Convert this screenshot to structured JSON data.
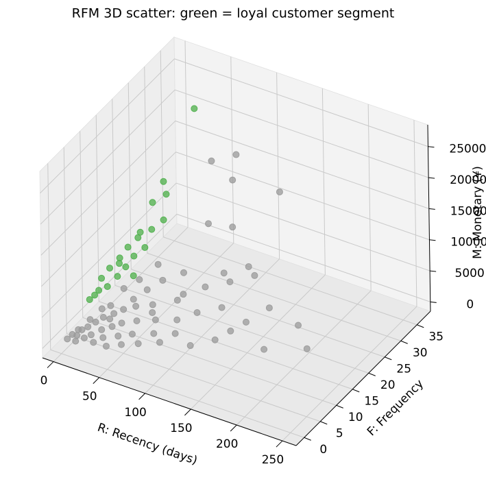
{
  "chart_data": {
    "type": "scatter3d",
    "title": "RFM 3D scatter: green = loyal customer segment",
    "xlabel": "R: Recency (days)",
    "ylabel": "F: Frequency",
    "zlabel": "M: Monetary (¥)",
    "xlim": [
      -12,
      265
    ],
    "ylim": [
      -2.5,
      39.2
    ],
    "zlim": [
      -1500,
      28500
    ],
    "xticks": [
      0,
      50,
      100,
      150,
      200,
      250
    ],
    "yticks": [
      0,
      5,
      10,
      15,
      20,
      25,
      30,
      35
    ],
    "zticks": [
      0,
      5000,
      10000,
      15000,
      20000,
      25000
    ],
    "grid": true,
    "series": [
      {
        "color": "#999999",
        "x": [
          5,
          8,
          12,
          15,
          18,
          20,
          22,
          25,
          28,
          30,
          33,
          35,
          38,
          40,
          42,
          45,
          48,
          50,
          55,
          58,
          60,
          65,
          70,
          75,
          80,
          85,
          90,
          95,
          100,
          110,
          120,
          130,
          140,
          150,
          160,
          175,
          190,
          210,
          230,
          3,
          10,
          14,
          26,
          32,
          44,
          52,
          62,
          68,
          78,
          88,
          105,
          115,
          125,
          135,
          145,
          12,
          20,
          30,
          40,
          50,
          60,
          80,
          90,
          120,
          100,
          70
        ],
        "y": [
          2,
          3,
          1,
          4,
          2,
          5,
          3,
          6,
          2,
          4,
          7,
          3,
          5,
          8,
          2,
          6,
          4,
          9,
          3,
          7,
          5,
          10,
          4,
          8,
          6,
          12,
          5,
          9,
          7,
          11,
          6,
          13,
          8,
          10,
          12,
          15,
          9,
          14,
          11,
          1,
          2,
          5,
          8,
          6,
          10,
          12,
          14,
          9,
          16,
          13,
          15,
          18,
          17,
          20,
          19,
          3,
          7,
          11,
          13,
          16,
          30,
          32,
          28,
          34,
          25,
          26
        ],
        "z": [
          800,
          1200,
          600,
          1500,
          900,
          2000,
          1100,
          2500,
          700,
          1800,
          3000,
          1300,
          2200,
          3500,
          800,
          2600,
          1700,
          4000,
          1200,
          3100,
          2100,
          4500,
          1600,
          3600,
          2700,
          5200,
          2300,
          4100,
          3200,
          5000,
          2800,
          5800,
          3700,
          4600,
          5500,
          7000,
          4200,
          6500,
          5300,
          500,
          900,
          2100,
          3400,
          2600,
          4300,
          5200,
          6200,
          3900,
          7200,
          5800,
          6800,
          8000,
          7600,
          9000,
          8600,
          1400,
          3100,
          4800,
          5700,
          7100,
          17000,
          18000,
          16500,
          13000,
          11000,
          9500
        ]
      },
      {
        "color": "#4daf4a",
        "x": [
          2,
          4,
          6,
          8,
          10,
          12,
          14,
          16,
          18,
          20,
          22,
          25,
          28,
          30,
          5,
          9,
          13,
          17,
          3,
          7,
          11,
          24
        ],
        "y": [
          12,
          14,
          10,
          16,
          18,
          11,
          20,
          13,
          15,
          17,
          22,
          19,
          24,
          14,
          9,
          26,
          21,
          28,
          8,
          30,
          15,
          35
        ],
        "z": [
          4500,
          5200,
          3800,
          6000,
          6800,
          4200,
          7500,
          5000,
          5600,
          6400,
          8200,
          7000,
          9000,
          5300,
          3500,
          9800,
          7800,
          10500,
          3200,
          11000,
          5800,
          21000
        ]
      }
    ]
  }
}
